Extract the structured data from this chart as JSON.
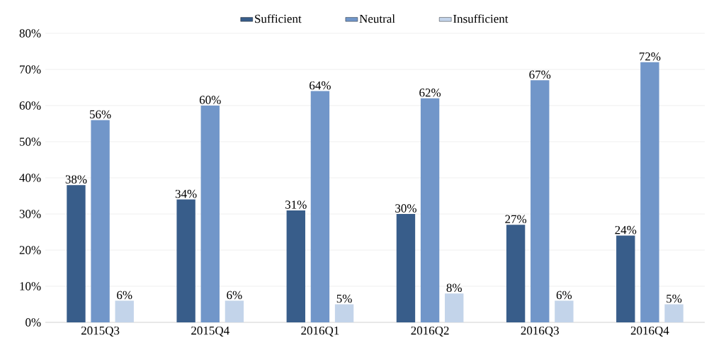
{
  "chart_data": {
    "type": "bar",
    "categories": [
      "2015Q3",
      "2015Q4",
      "2016Q1",
      "2016Q2",
      "2016Q3",
      "2016Q4"
    ],
    "series": [
      {
        "name": "Sufficient",
        "color": "#385d8a",
        "values": [
          38,
          34,
          31,
          30,
          27,
          24
        ],
        "value_labels": [
          "38%",
          "34%",
          "31%",
          "30%",
          "27%",
          "24%"
        ]
      },
      {
        "name": "Neutral",
        "color": "#7196c9",
        "values": [
          56,
          60,
          64,
          62,
          67,
          72
        ],
        "value_labels": [
          "56%",
          "60%",
          "64%",
          "62%",
          "67%",
          "72%"
        ]
      },
      {
        "name": "Insufficient",
        "color": "#c3d4ea",
        "values": [
          6,
          6,
          5,
          8,
          6,
          5
        ],
        "value_labels": [
          "6%",
          "6%",
          "5%",
          "8%",
          "6%",
          "5%"
        ]
      }
    ],
    "ylim": [
      0,
      80
    ],
    "yticks": [
      {
        "value": 0,
        "label": "0%"
      },
      {
        "value": 10,
        "label": "10%"
      },
      {
        "value": 20,
        "label": "20%"
      },
      {
        "value": 30,
        "label": "30%"
      },
      {
        "value": 40,
        "label": "40%"
      },
      {
        "value": 50,
        "label": "50%"
      },
      {
        "value": 60,
        "label": "60%"
      },
      {
        "value": 70,
        "label": "70%"
      },
      {
        "value": 80,
        "label": "80%"
      }
    ],
    "grid": "y",
    "legend": "top"
  }
}
